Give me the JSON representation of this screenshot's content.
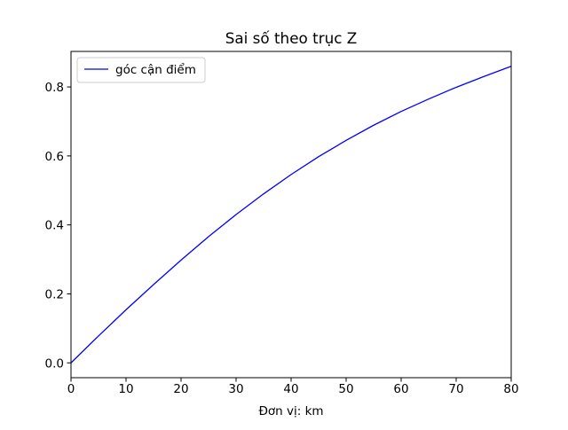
{
  "chart_data": {
    "type": "line",
    "title": "Sai số theo trục Z",
    "xlabel": "Đơn vị: km",
    "ylabel": "",
    "xlim": [
      0,
      80
    ],
    "ylim": [
      -0.043,
      0.903
    ],
    "xticks": [
      0,
      10,
      20,
      30,
      40,
      50,
      60,
      70,
      80
    ],
    "yticks": [
      0.0,
      0.2,
      0.4,
      0.6,
      0.8
    ],
    "xtick_labels": [
      "0",
      "10",
      "20",
      "30",
      "40",
      "50",
      "60",
      "70",
      "80"
    ],
    "ytick_labels": [
      "0.0",
      "0.2",
      "0.4",
      "0.6",
      "0.8"
    ],
    "grid": false,
    "legend_position": "top-left",
    "series": [
      {
        "name": "góc cận điểm",
        "color": "#0000ff",
        "x": [
          0,
          5,
          10,
          15,
          20,
          25,
          30,
          35,
          40,
          45,
          50,
          55,
          60,
          65,
          70,
          75,
          80
        ],
        "y": [
          0.0,
          0.078,
          0.154,
          0.227,
          0.298,
          0.366,
          0.43,
          0.49,
          0.546,
          0.598,
          0.645,
          0.689,
          0.729,
          0.765,
          0.799,
          0.83,
          0.86
        ]
      }
    ]
  }
}
